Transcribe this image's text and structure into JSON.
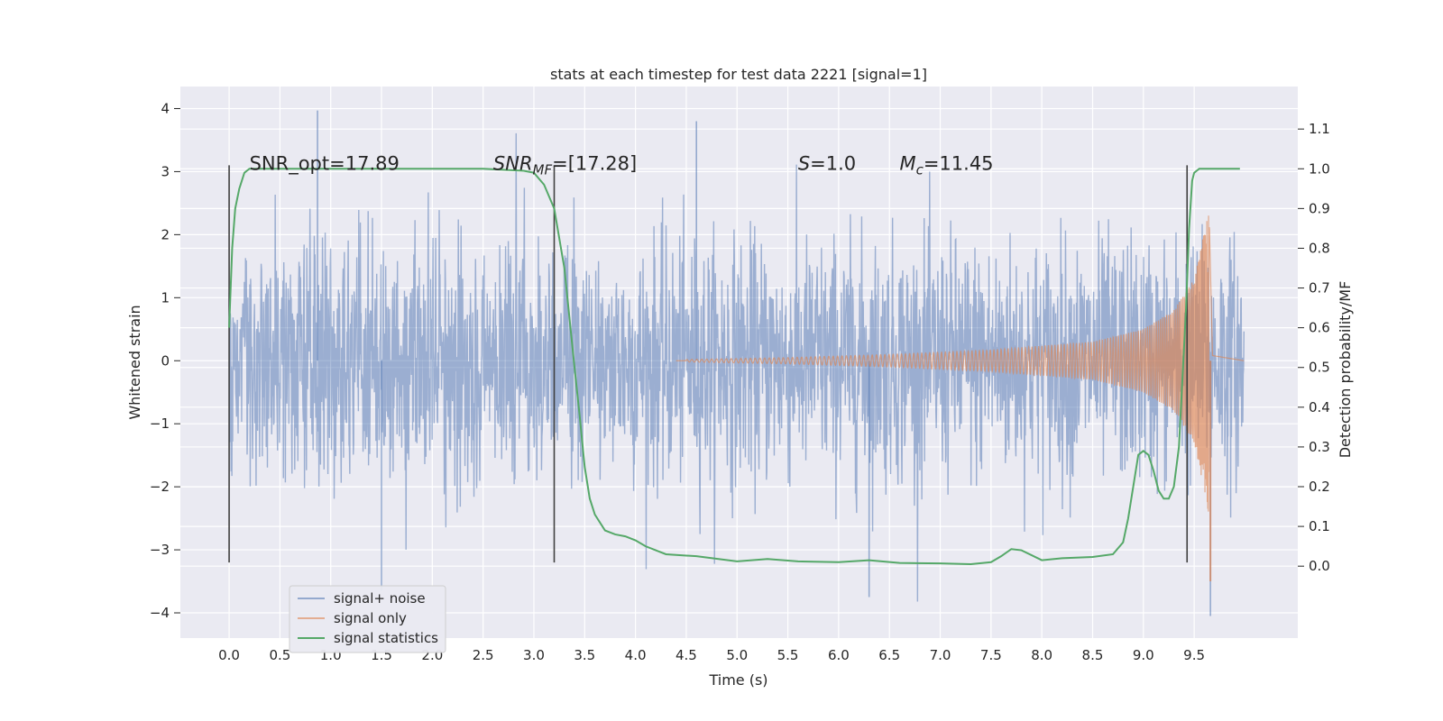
{
  "chart_data": {
    "type": "line",
    "title": "stats at each timestep for test data 2221 [signal=1]",
    "xlabel": "Time (s)",
    "ylabel": "Whitened strain",
    "y2label": "Detection probability/MF",
    "xlim": [
      -0.48,
      10.52
    ],
    "ylim": [
      -4.4,
      4.35
    ],
    "y2lim": [
      -0.181,
      1.207
    ],
    "x_ticks": [
      "0.0",
      "0.5",
      "1.0",
      "1.5",
      "2.0",
      "2.5",
      "3.0",
      "3.5",
      "4.0",
      "4.5",
      "5.0",
      "5.5",
      "6.0",
      "6.5",
      "7.0",
      "7.5",
      "8.0",
      "8.5",
      "9.0",
      "9.5"
    ],
    "y_ticks": [
      "−4",
      "−3",
      "−2",
      "−1",
      "0",
      "1",
      "2",
      "3",
      "4"
    ],
    "y2_ticks": [
      "0.0",
      "0.1",
      "0.2",
      "0.3",
      "0.4",
      "0.5",
      "0.6",
      "0.7",
      "0.8",
      "0.9",
      "1.0",
      "1.1"
    ],
    "grid": true,
    "legend_position": "lower-left",
    "colors": {
      "noise": "#4c72b0",
      "signal": "#dd8452",
      "stats": "#55a868",
      "background": "#eaeaf2",
      "marker": "#404040"
    },
    "series": [
      {
        "name": "signal+ noise",
        "axis": "left",
        "description_level": "dense whitened noise, envelope approx ±1.8 to ±2.6, peaks to ±4",
        "t_range": [
          0.0,
          9.99
        ],
        "notable_peaks": [
          [
            0.87,
            3.97
          ],
          [
            4.6,
            3.8
          ],
          [
            9.66,
            -4.05
          ],
          [
            1.5,
            -3.65
          ],
          [
            6.3,
            -3.75
          ]
        ]
      },
      {
        "name": "signal only",
        "axis": "left",
        "description_level": "chirp with amplitude growing from ~0 near t=4.5s to ~2.6 at merger, then ringdown",
        "merger_time": 9.65,
        "envelope": [
          [
            4.5,
            0.02
          ],
          [
            5.5,
            0.05
          ],
          [
            6.5,
            0.1
          ],
          [
            7.5,
            0.17
          ],
          [
            8.5,
            0.3
          ],
          [
            9.0,
            0.5
          ],
          [
            9.3,
            0.8
          ],
          [
            9.5,
            1.3
          ],
          [
            9.62,
            2.2
          ],
          [
            9.65,
            2.6
          ],
          [
            9.68,
            0.1
          ],
          [
            9.99,
            0.0
          ]
        ]
      },
      {
        "name": "signal statistics",
        "axis": "right",
        "x": [
          0.0,
          0.03,
          0.06,
          0.1,
          0.15,
          0.2,
          0.3,
          0.5,
          1.0,
          2.0,
          2.5,
          2.9,
          3.0,
          3.1,
          3.2,
          3.3,
          3.4,
          3.45,
          3.5,
          3.55,
          3.6,
          3.7,
          3.8,
          3.9,
          4.0,
          4.1,
          4.3,
          4.6,
          5.0,
          5.3,
          5.6,
          6.0,
          6.3,
          6.6,
          7.0,
          7.3,
          7.5,
          7.6,
          7.7,
          7.8,
          8.0,
          8.2,
          8.5,
          8.7,
          8.8,
          8.85,
          8.9,
          8.95,
          9.0,
          9.05,
          9.1,
          9.15,
          9.2,
          9.25,
          9.3,
          9.35,
          9.38,
          9.42,
          9.45,
          9.48,
          9.5,
          9.55,
          9.6,
          9.7,
          9.8,
          9.95
        ],
        "values": [
          0.6,
          0.8,
          0.9,
          0.95,
          0.99,
          1.0,
          1.0,
          1.0,
          1.0,
          1.0,
          1.0,
          0.995,
          0.99,
          0.96,
          0.9,
          0.75,
          0.5,
          0.38,
          0.25,
          0.17,
          0.13,
          0.09,
          0.08,
          0.075,
          0.065,
          0.05,
          0.03,
          0.025,
          0.012,
          0.018,
          0.012,
          0.01,
          0.015,
          0.008,
          0.007,
          0.005,
          0.01,
          0.025,
          0.043,
          0.04,
          0.015,
          0.02,
          0.023,
          0.03,
          0.06,
          0.12,
          0.2,
          0.28,
          0.29,
          0.28,
          0.24,
          0.19,
          0.17,
          0.17,
          0.2,
          0.3,
          0.45,
          0.65,
          0.85,
          0.97,
          0.99,
          1.0,
          1.0,
          1.0,
          1.0,
          1.0
        ]
      }
    ],
    "vlines": [
      0.0,
      3.2,
      9.43
    ],
    "annotations": [
      {
        "text": "SNR_opt=17.89",
        "x": 0.2,
        "y": 3.0
      },
      {
        "text_main": "SNR",
        "text_sub": "MF",
        "text_rest": "=[17.28]",
        "x": 2.6,
        "y": 3.0
      },
      {
        "text_main": "S",
        "text_rest": "=1.0",
        "x": 5.6,
        "y": 3.0
      },
      {
        "text_main": "M",
        "text_sub": "c",
        "text_rest": "=11.45",
        "x": 6.6,
        "y": 3.0
      }
    ]
  }
}
